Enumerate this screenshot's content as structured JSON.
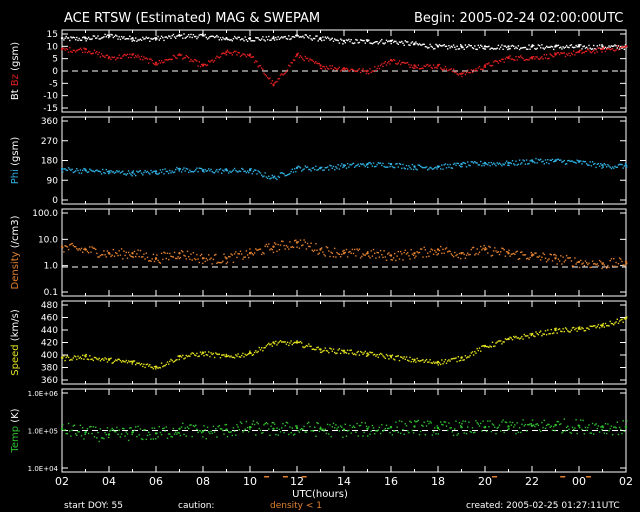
{
  "header": {
    "title": "ACE RTSW (Estimated) MAG & SWEPAM",
    "begin": "Begin: 2005-02-24 02:00:00UTC"
  },
  "footer": {
    "start_doy": "start DOY:  55",
    "caution": "caution:",
    "density_note": "density < 1",
    "created": "created: 2005-02-25 01:27:11UTC",
    "xlabel": "UTC(hours)"
  },
  "colors": {
    "background": "#000000",
    "frame": "#ffffff",
    "bt": "#ffffff",
    "bz": "#e02020",
    "phi": "#30b0e0",
    "density": "#e08030",
    "speed": "#e0e020",
    "temp": "#30c030",
    "caution": "#e08030"
  },
  "chart_data": [
    {
      "type": "scatter",
      "name": "mag-bt-bz",
      "ylabel_parts": [
        "Bt",
        "Bz",
        "(gsm)"
      ],
      "yticks": [
        "15",
        "10",
        "5",
        "0",
        "-5",
        "-10",
        "-15"
      ],
      "ylim": [
        -15,
        15
      ],
      "xlim": [
        2,
        26
      ],
      "x": [
        2,
        3,
        4,
        5,
        6,
        7,
        8,
        9,
        10,
        11,
        12,
        13,
        14,
        15,
        16,
        17,
        18,
        19,
        20,
        21,
        22,
        23,
        24,
        25,
        26
      ],
      "series": [
        {
          "name": "Bt",
          "values": [
            12,
            12,
            13,
            12,
            12,
            13,
            13,
            12,
            12,
            12,
            13,
            12,
            11,
            11,
            11,
            10,
            9,
            9,
            9,
            9,
            9,
            9,
            9,
            9,
            9
          ]
        },
        {
          "name": "Bz",
          "values": [
            8,
            8,
            5,
            6,
            3,
            6,
            2,
            7,
            6,
            -5,
            6,
            2,
            1,
            0,
            4,
            2,
            2,
            -1,
            2,
            5,
            5,
            6,
            7,
            8,
            9
          ]
        }
      ],
      "dashed_zero": 0
    },
    {
      "type": "scatter",
      "name": "phi",
      "ylabel_parts": [
        "Phi",
        "(gsm)"
      ],
      "yticks": [
        "360",
        "270",
        "180",
        "90",
        "0"
      ],
      "ylim": [
        0,
        360
      ],
      "xlim": [
        2,
        26
      ],
      "x": [
        2,
        3,
        4,
        5,
        6,
        7,
        8,
        9,
        10,
        11,
        12,
        13,
        14,
        15,
        16,
        17,
        18,
        19,
        20,
        21,
        22,
        23,
        24,
        25,
        26
      ],
      "series": [
        {
          "name": "Phi",
          "values": [
            145,
            140,
            135,
            130,
            135,
            145,
            140,
            140,
            140,
            110,
            150,
            150,
            160,
            165,
            165,
            155,
            155,
            165,
            170,
            170,
            180,
            180,
            175,
            160,
            160
          ]
        }
      ]
    },
    {
      "type": "scatter",
      "name": "density",
      "ylabel_parts": [
        "Density",
        "(/cm3)"
      ],
      "yticks": [
        "100.0",
        "10.0",
        "1.0",
        "0.1"
      ],
      "ylim": [
        0.1,
        100
      ],
      "scale": "log",
      "xlim": [
        2,
        26
      ],
      "x": [
        2,
        3,
        4,
        5,
        6,
        7,
        8,
        9,
        10,
        11,
        12,
        13,
        14,
        15,
        16,
        17,
        18,
        19,
        20,
        21,
        22,
        23,
        24,
        25,
        26
      ],
      "series": [
        {
          "name": "Density",
          "values": [
            5,
            4,
            3,
            3,
            2,
            3,
            2,
            2,
            3,
            5,
            7,
            4,
            3,
            3,
            2.5,
            3,
            4,
            3,
            4,
            3,
            2.5,
            2,
            1.5,
            1.3,
            1.5
          ]
        }
      ],
      "dashed_ref": 1
    },
    {
      "type": "scatter",
      "name": "speed",
      "ylabel_parts": [
        "Speed",
        "(km/s)"
      ],
      "yticks": [
        "480",
        "460",
        "440",
        "420",
        "400",
        "380",
        "360"
      ],
      "ylim": [
        360,
        480
      ],
      "xlim": [
        2,
        26
      ],
      "x": [
        2,
        3,
        4,
        5,
        6,
        7,
        8,
        9,
        10,
        11,
        12,
        13,
        14,
        15,
        16,
        17,
        18,
        19,
        20,
        21,
        22,
        23,
        24,
        25,
        26
      ],
      "series": [
        {
          "name": "Speed",
          "values": [
            398,
            400,
            395,
            392,
            385,
            400,
            405,
            400,
            405,
            420,
            420,
            410,
            408,
            404,
            400,
            395,
            392,
            398,
            415,
            425,
            432,
            438,
            440,
            445,
            455
          ]
        }
      ]
    },
    {
      "type": "scatter",
      "name": "temp",
      "ylabel_parts": [
        "Temp",
        "(K)"
      ],
      "yticks": [
        "1.0E+06",
        "1.0E+05",
        "1.0E+04"
      ],
      "ylim": [
        10000,
        1000000
      ],
      "scale": "log",
      "xlim": [
        2,
        26
      ],
      "x": [
        2,
        3,
        4,
        5,
        6,
        7,
        8,
        9,
        10,
        11,
        12,
        13,
        14,
        15,
        16,
        17,
        18,
        19,
        20,
        21,
        22,
        23,
        24,
        25,
        26
      ],
      "series": [
        {
          "name": "Temp",
          "values": [
            110000,
            90000,
            80000,
            90000,
            85000,
            110000,
            95000,
            105000,
            120000,
            110000,
            115000,
            110000,
            105000,
            110000,
            120000,
            125000,
            115000,
            120000,
            120000,
            125000,
            130000,
            135000,
            130000,
            125000,
            120000
          ]
        }
      ],
      "dashed_ref": 100000
    }
  ],
  "xaxis": {
    "ticks": [
      "02",
      "04",
      "06",
      "08",
      "10",
      "12",
      "14",
      "16",
      "18",
      "20",
      "22",
      "00",
      "02"
    ]
  }
}
